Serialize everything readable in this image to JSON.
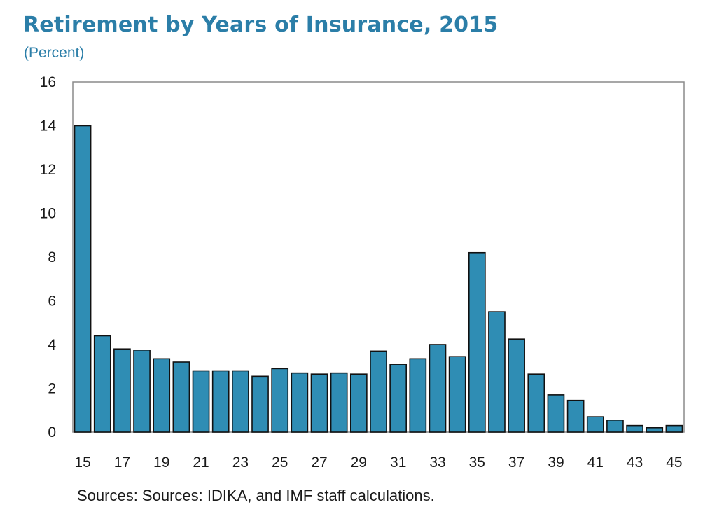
{
  "title": "Retirement by Years of Insurance, 2015",
  "subtitle": "(Percent)",
  "source": "Sources: Sources: IDIKA, and IMF staff calculations.",
  "colors": {
    "bar": "#2f8db4",
    "bar_stroke": "#111111",
    "title": "#2b7ea8",
    "axis": "#777777"
  },
  "chart_data": {
    "type": "bar",
    "title": "Retirement by Years of Insurance, 2015",
    "subtitle": "(Percent)",
    "xlabel": "",
    "ylabel": "",
    "categories": [
      15,
      16,
      17,
      18,
      19,
      20,
      21,
      22,
      23,
      24,
      25,
      26,
      27,
      28,
      29,
      30,
      31,
      32,
      33,
      34,
      35,
      36,
      37,
      38,
      39,
      40,
      41,
      42,
      43,
      44,
      45
    ],
    "values": [
      14.0,
      4.4,
      3.8,
      3.75,
      3.35,
      3.2,
      2.8,
      2.8,
      2.8,
      2.55,
      2.9,
      2.7,
      2.65,
      2.7,
      2.65,
      3.7,
      3.1,
      3.35,
      4.0,
      3.45,
      8.2,
      5.5,
      4.25,
      2.65,
      1.7,
      1.45,
      0.7,
      0.55,
      0.3,
      0.2,
      0.3
    ],
    "x_tick_labels": [
      "15",
      "17",
      "19",
      "21",
      "23",
      "25",
      "27",
      "29",
      "31",
      "33",
      "35",
      "37",
      "39",
      "41",
      "43",
      "45"
    ],
    "y_ticks": [
      0,
      2,
      4,
      6,
      8,
      10,
      12,
      14,
      16
    ],
    "ylim": [
      0,
      16
    ],
    "grid": false,
    "legend": "none"
  }
}
